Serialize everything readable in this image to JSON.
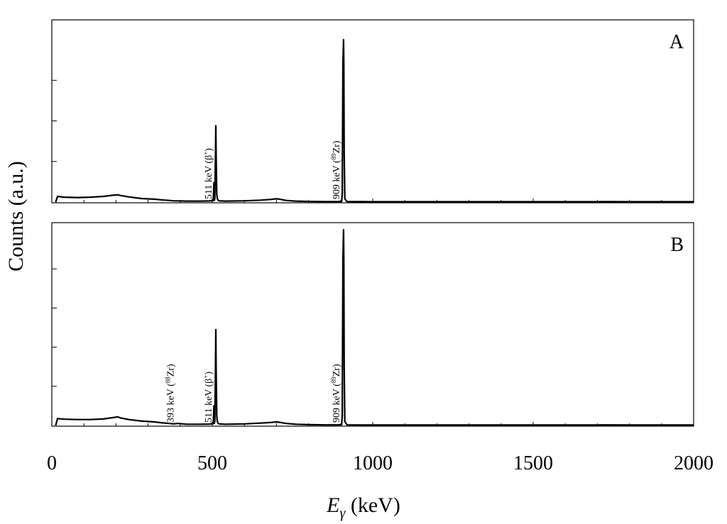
{
  "chart_data": {
    "type": "line",
    "shared_x": {
      "label_symbol": "E",
      "label_subscript": "γ",
      "label_unit": " (keV)",
      "xlim": [
        0,
        2000
      ],
      "ticks": [
        0,
        500,
        1000,
        1500,
        2000
      ],
      "tick_labels": [
        "0",
        "500",
        "1000",
        "1500",
        "2000"
      ]
    },
    "ylabel": "Counts (a.u.)",
    "panels": [
      {
        "panel_label": "A",
        "ylim": [
          0,
          1.0
        ],
        "yticks": [
          0.25,
          0.5,
          0.75
        ],
        "x": [
          12,
          18,
          40,
          80,
          120,
          160,
          190,
          205,
          215,
          240,
          280,
          320,
          340,
          380,
          420,
          460,
          490,
          503,
          505,
          506,
          508,
          510,
          511,
          512,
          514,
          516,
          518,
          521,
          540,
          600,
          650,
          680,
          700,
          710,
          730,
          760,
          800,
          850,
          890,
          903,
          905,
          906,
          907,
          909,
          910,
          911,
          913,
          920,
          1000,
          1200,
          1400,
          1600,
          1700,
          1720,
          1800,
          2000
        ],
        "y": [
          0.0,
          0.035,
          0.03,
          0.028,
          0.03,
          0.035,
          0.042,
          0.045,
          0.04,
          0.032,
          0.022,
          0.018,
          0.014,
          0.008,
          0.006,
          0.006,
          0.007,
          0.009,
          0.12,
          0.01,
          0.02,
          0.3,
          0.47,
          0.3,
          0.05,
          0.02,
          0.012,
          0.008,
          0.006,
          0.008,
          0.012,
          0.016,
          0.02,
          0.018,
          0.01,
          0.006,
          0.004,
          0.003,
          0.003,
          0.004,
          0.05,
          0.4,
          0.85,
          1.0,
          0.85,
          0.3,
          0.02,
          0.003,
          0.002,
          0.002,
          0.002,
          0.002,
          0.002,
          0.003,
          0.002,
          0.002
        ],
        "annotations": [
          {
            "x": 511,
            "text_main": "511 keV (β",
            "text_sup": "+",
            "text_end": ")"
          },
          {
            "x": 909,
            "text_main": "909 keV (",
            "text_sup": "89",
            "text_end": "Zr)"
          }
        ]
      },
      {
        "panel_label": "B",
        "ylim": [
          0,
          1.0
        ],
        "yticks": [
          0.2,
          0.4,
          0.6,
          0.8
        ],
        "x": [
          12,
          18,
          40,
          80,
          120,
          160,
          190,
          205,
          215,
          240,
          280,
          320,
          340,
          380,
          393,
          420,
          460,
          490,
          503,
          505,
          506,
          508,
          510,
          511,
          512,
          514,
          516,
          518,
          521,
          540,
          600,
          650,
          680,
          700,
          710,
          730,
          760,
          800,
          850,
          890,
          903,
          905,
          906,
          907,
          909,
          910,
          911,
          913,
          920,
          1000,
          1200,
          1400,
          1600,
          1700,
          1720,
          1800,
          2000
        ],
        "y": [
          0.0,
          0.035,
          0.032,
          0.03,
          0.03,
          0.033,
          0.04,
          0.044,
          0.038,
          0.03,
          0.022,
          0.018,
          0.014,
          0.008,
          0.01,
          0.006,
          0.006,
          0.007,
          0.009,
          0.1,
          0.01,
          0.02,
          0.3,
          0.49,
          0.3,
          0.05,
          0.02,
          0.012,
          0.008,
          0.006,
          0.008,
          0.012,
          0.015,
          0.018,
          0.016,
          0.01,
          0.006,
          0.004,
          0.003,
          0.003,
          0.004,
          0.05,
          0.4,
          0.85,
          1.0,
          0.85,
          0.3,
          0.02,
          0.003,
          0.002,
          0.002,
          0.002,
          0.002,
          0.002,
          0.003,
          0.002,
          0.002
        ],
        "annotations": [
          {
            "x": 393,
            "text_main": "393 keV (",
            "text_sup": "88",
            "text_end": "Zr)"
          },
          {
            "x": 511,
            "text_main": "511 keV (β",
            "text_sup": "+",
            "text_end": ")"
          },
          {
            "x": 909,
            "text_main": "909 keV (",
            "text_sup": "89",
            "text_end": "Zr)"
          }
        ]
      }
    ]
  }
}
